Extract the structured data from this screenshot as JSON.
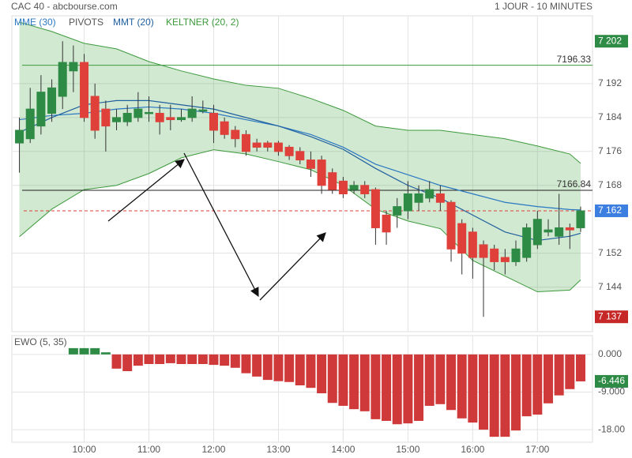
{
  "header": {
    "source_title": "CAC 40 - abcbourse.com",
    "timeframe": "1 JOUR - 10 MINUTES"
  },
  "chart_data": [
    {
      "type": "candlestick",
      "x": [
        540,
        550,
        560,
        570,
        580,
        590,
        600,
        610,
        620,
        630,
        640,
        650,
        660,
        670,
        680,
        690,
        700,
        710,
        720,
        730,
        740,
        750,
        760,
        770,
        780,
        790,
        800,
        810,
        820,
        830,
        840,
        850,
        860,
        870,
        880,
        890,
        900,
        910,
        920,
        930,
        940,
        950,
        960,
        970,
        980,
        990,
        1000,
        1010,
        1020,
        1030,
        1040,
        1050,
        1060
      ],
      "open": [
        7178,
        7179,
        7182,
        7185,
        7189,
        7195,
        7197,
        7189,
        7186,
        7183,
        7183,
        7184,
        7185,
        7185,
        7184,
        7183.5,
        7184,
        7185.5,
        7185,
        7183,
        7181,
        7180,
        7178,
        7178,
        7178,
        7177,
        7176,
        7174,
        7174,
        7171,
        7169,
        7167,
        7168,
        7167,
        7161,
        7161,
        7162,
        7164,
        7165,
        7166,
        7164,
        7159,
        7157,
        7154,
        7153,
        7151,
        7150,
        7151,
        7154,
        7157,
        7156,
        7158,
        7158
      ],
      "high": [
        7184,
        7191,
        7194,
        7193,
        7202,
        7201,
        7199,
        7192,
        7188,
        7186,
        7187,
        7190,
        7189,
        7187,
        7187,
        7186,
        7189,
        7188,
        7187,
        7184,
        7182,
        7181,
        7179,
        7178.5,
        7178.5,
        7177.5,
        7177,
        7176,
        7175,
        7172,
        7170,
        7169,
        7169,
        7167.5,
        7162,
        7165,
        7169,
        7168,
        7169,
        7168,
        7164.5,
        7160,
        7158,
        7155,
        7154,
        7153,
        7155,
        7159,
        7162,
        7160,
        7166,
        7159,
        7163
      ],
      "low": [
        7171,
        7178,
        7180,
        7183,
        7186,
        7190,
        7183,
        7179,
        7176,
        7181,
        7182,
        7183,
        7183,
        7180,
        7181,
        7183,
        7183,
        7185,
        7178,
        7179,
        7177,
        7175,
        7176,
        7176,
        7175,
        7174,
        7173,
        7170,
        7166,
        7166,
        7165,
        7166,
        7165,
        7154,
        7154,
        7158,
        7160,
        7162,
        7164,
        7162,
        7150,
        7147,
        7146,
        7137,
        7148,
        7147,
        7149,
        7150,
        7153,
        7156,
        7154,
        7153,
        7157
      ],
      "close": [
        7181,
        7186,
        7190,
        7191,
        7197,
        7197,
        7184,
        7181,
        7182,
        7184,
        7185,
        7186,
        7185.2,
        7183,
        7183.5,
        7184,
        7186,
        7185.8,
        7181,
        7180,
        7179,
        7176,
        7177,
        7177,
        7176,
        7175,
        7174,
        7172,
        7168,
        7167,
        7166,
        7168,
        7166,
        7158,
        7157,
        7163,
        7166,
        7166,
        7167,
        7164,
        7153,
        7152,
        7151,
        7151,
        7150,
        7150,
        7153,
        7158,
        7160,
        7157.5,
        7158,
        7157.5,
        7162
      ],
      "up_color": "#2e8b45",
      "down_color": "#e0403a",
      "xlim": [
        533,
        1071
      ],
      "xticks": [
        {
          "value": 600,
          "label": "10:00"
        },
        {
          "value": 660,
          "label": "11:00"
        },
        {
          "value": 720,
          "label": "12:00"
        },
        {
          "value": 780,
          "label": "13:00"
        },
        {
          "value": 840,
          "label": "14:00"
        },
        {
          "value": 900,
          "label": "15:00"
        },
        {
          "value": 960,
          "label": "16:00"
        },
        {
          "value": 1020,
          "label": "17:00"
        }
      ],
      "ylim": [
        7133.5,
        7208
      ],
      "yticks": [
        {
          "value": 7192,
          "label": "7 192"
        },
        {
          "value": 7184,
          "label": "7 184"
        },
        {
          "value": 7176,
          "label": "7 176"
        },
        {
          "value": 7168,
          "label": "7 168"
        },
        {
          "value": 7152,
          "label": "7 152"
        },
        {
          "value": 7144,
          "label": "7 144"
        }
      ],
      "grid": true,
      "keltner": {
        "name": "KELTNER (20, 2)",
        "color": "#3c9a3c",
        "fill": "rgba(70,165,70,0.25)",
        "x": [
          540,
          570,
          600,
          630,
          660,
          690,
          720,
          750,
          780,
          810,
          840,
          870,
          900,
          930,
          960,
          990,
          1020,
          1050,
          1060
        ],
        "upper": [
          7206.5,
          7204.3,
          7201.5,
          7200.2,
          7197.2,
          7195,
          7193.1,
          7191.6,
          7190.9,
          7188.5,
          7185.7,
          7182,
          7181,
          7181,
          7180,
          7179,
          7177.3,
          7175.4,
          7173.2
        ],
        "lower": [
          7155.9,
          7162.4,
          7167,
          7168,
          7170.8,
          7174.5,
          7176.4,
          7175.4,
          7173.6,
          7171.7,
          7168,
          7162.4,
          7159.6,
          7157.8,
          7150.3,
          7146.6,
          7142.9,
          7143.3,
          7145.7
        ]
      },
      "overlays": [
        {
          "name": "MME (30)",
          "color": "#2a78c2",
          "x": [
            540,
            570,
            600,
            630,
            660,
            690,
            720,
            750,
            780,
            810,
            840,
            870,
            900,
            930,
            960,
            990,
            1020,
            1050,
            1060
          ],
          "values": [
            7183.5,
            7184.5,
            7185,
            7186,
            7186.5,
            7186,
            7185,
            7183.5,
            7182,
            7180,
            7177,
            7173,
            7170.5,
            7168,
            7166,
            7164,
            7163,
            7162.3,
            7162.2
          ]
        },
        {
          "name": "MMT (20)",
          "color": "#1f5f9e",
          "x": [
            540,
            570,
            600,
            630,
            660,
            690,
            720,
            750,
            780,
            810,
            840,
            870,
            900,
            930,
            960,
            990,
            1020,
            1050,
            1060
          ],
          "values": [
            7180.5,
            7184,
            7187,
            7188,
            7188,
            7187,
            7186,
            7184,
            7182,
            7179.5,
            7176.5,
            7172,
            7168,
            7165,
            7161,
            7157,
            7155,
            7156,
            7156.7
          ]
        }
      ],
      "pivots": {
        "name": "PIVOTS",
        "levels": [
          {
            "value": 7196.33,
            "color": "#3c9a3c"
          },
          {
            "value": 7166.84,
            "color": "#222222"
          }
        ]
      },
      "price_markers": [
        {
          "value": 7202,
          "label": "7 202",
          "color": "#2e8b45"
        },
        {
          "value": 7162,
          "label": "7 162",
          "color": "#3d7fe0",
          "dashed_color": "#e0403a"
        },
        {
          "value": 7137,
          "label": "7 137",
          "color": "#c62828"
        }
      ]
    },
    {
      "type": "bar",
      "title": "EWO (5, 35)",
      "x": [
        590,
        600,
        610,
        620,
        630,
        640,
        650,
        660,
        670,
        680,
        690,
        700,
        710,
        720,
        730,
        740,
        750,
        760,
        770,
        780,
        790,
        800,
        810,
        820,
        830,
        840,
        850,
        860,
        870,
        880,
        890,
        900,
        910,
        920,
        930,
        940,
        950,
        960,
        970,
        980,
        990,
        1000,
        1010,
        1020,
        1030,
        1040,
        1050,
        1060
      ],
      "values": [
        1.5,
        1.5,
        1.5,
        0.5,
        -3.4,
        -4,
        -2.7,
        -2.3,
        -2.3,
        -2.1,
        -2.3,
        -2.3,
        -2.3,
        -2.5,
        -2.7,
        -3.2,
        -4.5,
        -5.3,
        -6.1,
        -6.4,
        -6.6,
        -7.4,
        -8,
        -9.3,
        -11.6,
        -12.3,
        -13.1,
        -13.6,
        -15.5,
        -15.9,
        -16.7,
        -16.5,
        -15.9,
        -12.3,
        -11.9,
        -13.3,
        -15.3,
        -16.3,
        -18,
        -19.7,
        -19.7,
        -18.2,
        -14.8,
        -14.4,
        -11.7,
        -9.8,
        -8.3,
        -6.446
      ],
      "up_color": "#2e8b45",
      "down_color": "#d0393a",
      "xlim": [
        533,
        1071
      ],
      "ylim": [
        -21,
        4.5
      ],
      "yticks": [
        {
          "value": 0,
          "label": "0.000"
        },
        {
          "value": -9,
          "label": "-9.000"
        },
        {
          "value": -18,
          "label": "-18.00"
        }
      ],
      "current": -6.446,
      "current_color": "#2e8b45"
    }
  ]
}
